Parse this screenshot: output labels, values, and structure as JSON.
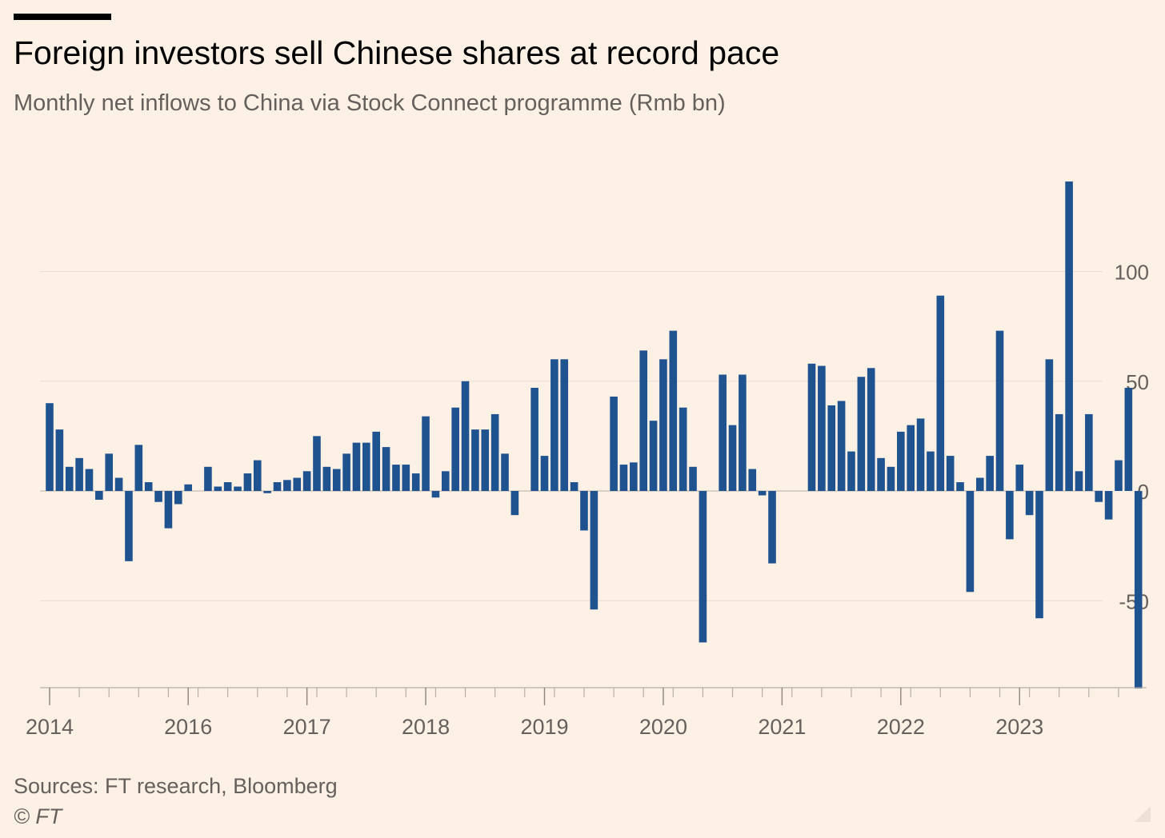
{
  "header": {
    "title": "Foreign investors sell Chinese shares at record pace",
    "subtitle": "Monthly net inflows to China via Stock Connect programme (Rmb bn)"
  },
  "footer": {
    "source": "Sources: FT research, Bloomberg",
    "credit": "© FT"
  },
  "colors": {
    "bar": "#1f5390",
    "background": "#fdf1e6",
    "grid": "#e9ddd3"
  },
  "chart_data": {
    "type": "bar",
    "title": "Foreign investors sell Chinese shares at record pace",
    "subtitle": "Monthly net inflows to China via Stock Connect programme (Rmb bn)",
    "xlabel": "",
    "ylabel": "",
    "ylim": [
      -90,
      142
    ],
    "yticks": [
      -50,
      0,
      50,
      100
    ],
    "y_axis_position": "right",
    "grid": true,
    "x_tick_labels": [
      {
        "label": "2014",
        "index": 0
      },
      {
        "label": "2016",
        "index": 14
      },
      {
        "label": "2017",
        "index": 26
      },
      {
        "label": "2018",
        "index": 38
      },
      {
        "label": "2019",
        "index": 50
      },
      {
        "label": "2020",
        "index": 62
      },
      {
        "label": "2021",
        "index": 74
      },
      {
        "label": "2022",
        "index": 86
      },
      {
        "label": "2023",
        "index": 98
      }
    ],
    "values": [
      40,
      28,
      11,
      15,
      10,
      -4,
      17,
      6,
      -32,
      21,
      4,
      -5,
      -17,
      -6,
      3,
      0,
      11,
      2,
      4,
      2,
      8,
      14,
      -1,
      4,
      5,
      6,
      9,
      25,
      11,
      10,
      17,
      22,
      22,
      27,
      20,
      12,
      12,
      8,
      34,
      -3,
      9,
      38,
      50,
      28,
      28,
      35,
      17,
      -11,
      0,
      47,
      16,
      60,
      60,
      4,
      -18,
      -54,
      0,
      43,
      12,
      13,
      64,
      32,
      60,
      73,
      38,
      11,
      -69,
      0,
      53,
      30,
      53,
      10,
      -2,
      -33,
      0,
      0,
      0,
      58,
      57,
      39,
      41,
      18,
      52,
      56,
      15,
      11,
      27,
      30,
      33,
      18,
      89,
      16,
      4,
      -46,
      6,
      16,
      73,
      -22,
      12,
      -11,
      -58,
      60,
      35,
      141,
      9,
      35,
      -5,
      -13,
      14,
      47,
      -90
    ]
  }
}
